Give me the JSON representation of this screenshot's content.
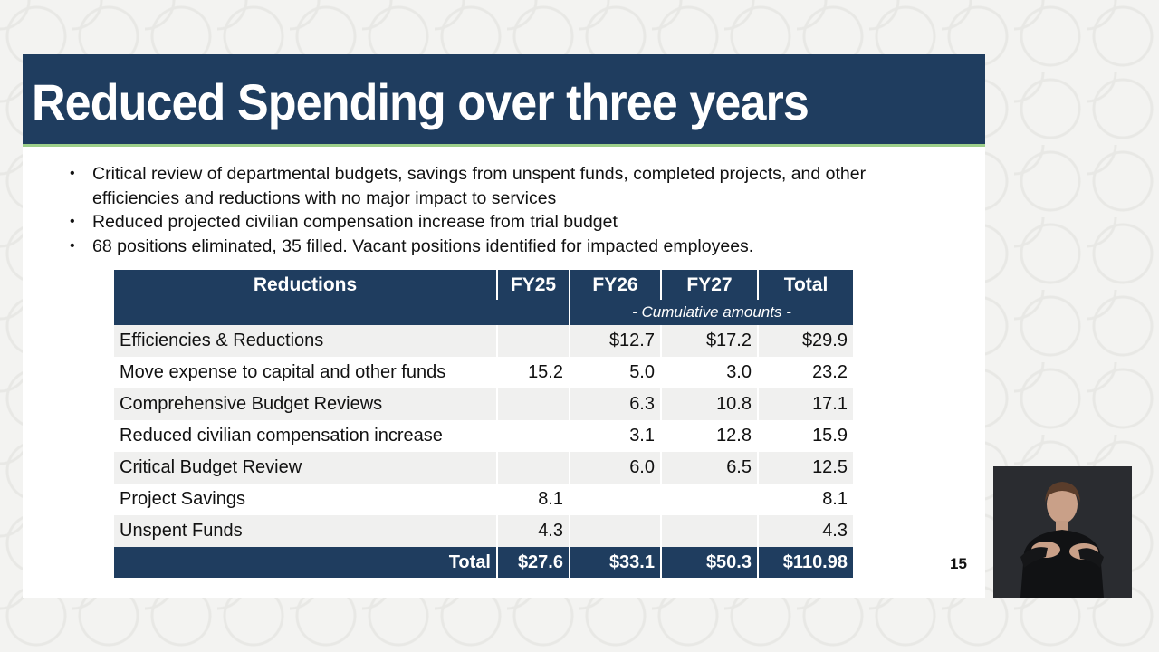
{
  "slide": {
    "title": "Reduced Spending over three years",
    "bullets": [
      "Critical review of departmental budgets, savings from unspent funds, completed projects, and other efficiencies and reductions with no major impact to services",
      "Reduced projected civilian compensation increase from trial budget",
      "68 positions eliminated, 35 filled. Vacant positions identified for impacted employees."
    ],
    "bullet_symbol": "•",
    "page_number": "15"
  },
  "table": {
    "headers": [
      "Reductions",
      "FY25",
      "FY26",
      "FY27",
      "Total"
    ],
    "subheader": "- Cumulative amounts -",
    "rows": [
      [
        "Efficiencies & Reductions",
        "",
        "$12.7",
        "$17.2",
        "$29.9"
      ],
      [
        "Move expense to capital and other funds",
        "15.2",
        "5.0",
        "3.0",
        "23.2"
      ],
      [
        "Comprehensive Budget Reviews",
        "",
        "6.3",
        "10.8",
        "17.1"
      ],
      [
        "Reduced civilian compensation increase",
        "",
        "3.1",
        "12.8",
        "15.9"
      ],
      [
        "Critical Budget Review",
        "",
        "6.0",
        "6.5",
        "12.5"
      ],
      [
        "Project Savings",
        "8.1",
        "",
        "",
        "8.1"
      ],
      [
        "Unspent Funds",
        "4.3",
        "",
        "",
        "4.3"
      ]
    ],
    "total_row": [
      "Total",
      "$27.6",
      "$33.1",
      "$50.3",
      "$110.98"
    ]
  },
  "colors": {
    "header_navy": "#1f3d5f",
    "title_underline": "#9dcf8a",
    "row_shade": "#f0f0ef"
  },
  "icons": {
    "interpreter": "sign-language-interpreter-video"
  }
}
